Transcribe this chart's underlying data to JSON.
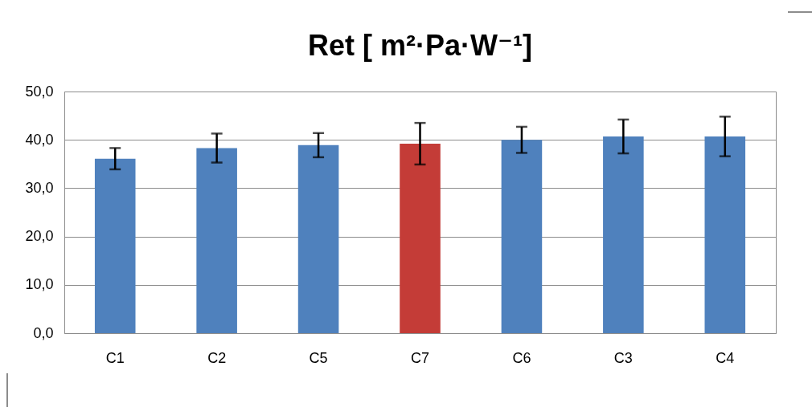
{
  "chart_data": {
    "type": "bar",
    "title": "Ret [ m²·Pa·W⁻¹]",
    "categories": [
      "C1",
      "C2",
      "C5",
      "C7",
      "C6",
      "C3",
      "C4"
    ],
    "values": [
      36.1,
      38.3,
      38.9,
      39.2,
      40.0,
      40.7,
      40.7
    ],
    "errors": [
      2.2,
      3.0,
      2.5,
      4.3,
      2.7,
      3.5,
      4.1
    ],
    "colors": [
      "#4f81bd",
      "#4f81bd",
      "#4f81bd",
      "#c43c37",
      "#4f81bd",
      "#4f81bd",
      "#4f81bd"
    ],
    "ylim": [
      0,
      50
    ],
    "yticks": [
      {
        "value": 0,
        "label": "0,0"
      },
      {
        "value": 10,
        "label": "10,0"
      },
      {
        "value": 20,
        "label": "20,0"
      },
      {
        "value": 30,
        "label": "30,0"
      },
      {
        "value": 40,
        "label": "40,0"
      },
      {
        "value": 50,
        "label": "50,0"
      }
    ],
    "grid": "y",
    "legend": false
  }
}
